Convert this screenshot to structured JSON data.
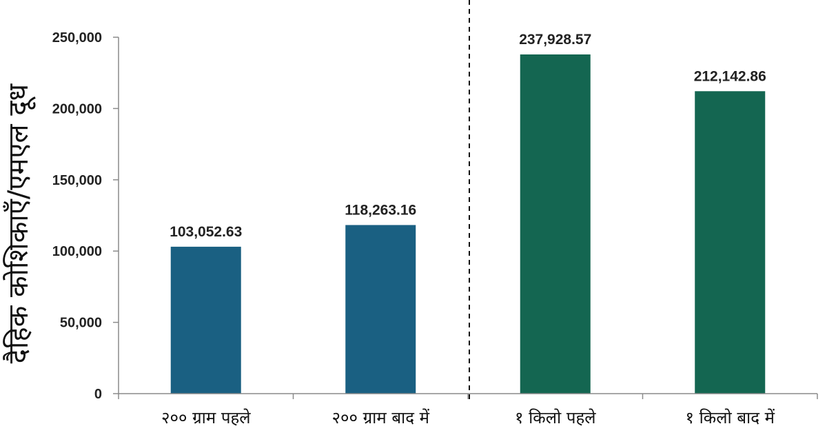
{
  "chart_data": {
    "type": "bar",
    "categories": [
      "२०० ग्राम पहले",
      "२०० ग्राम बाद में",
      "१ किलो पहले",
      "१ किलो बाद में"
    ],
    "values": [
      103052.63,
      118263.16,
      237928.57,
      212142.86
    ],
    "value_labels": [
      "103,052.63",
      "118,263.16",
      "237,928.57",
      "212,142.86"
    ],
    "bar_colors": [
      "#1a6082",
      "#1a6082",
      "#146651",
      "#146651"
    ],
    "ylabel": "दैहिक कोशिकाएँ/एमएल दूध",
    "xlabel": "",
    "ylim": [
      0,
      250000
    ],
    "yticks": [
      0,
      50000,
      100000,
      150000,
      200000,
      250000
    ],
    "ytick_labels": [
      "0",
      "50,000",
      "100,000",
      "150,000",
      "200,000",
      "250,000"
    ],
    "grid": false,
    "group_divider": "dashed vertical line between the 2nd and 3rd bars"
  }
}
